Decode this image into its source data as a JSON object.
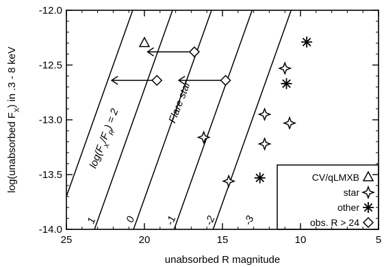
{
  "chart_data": {
    "type": "scatter",
    "xlabel": "unabsorbed R magnitude",
    "ylabel_main": "log(unabsorbed F",
    "ylabel_sub": "X",
    "ylabel_tail": ") in .3 - 8 keV",
    "xlim": [
      25,
      5
    ],
    "ylim": [
      -14.0,
      -12.0
    ],
    "x_ticks": [
      {
        "v": 25,
        "label": "25"
      },
      {
        "v": 20,
        "label": "20"
      },
      {
        "v": 15,
        "label": "15"
      },
      {
        "v": 10,
        "label": "10"
      },
      {
        "v": 5,
        "label": "5"
      }
    ],
    "y_ticks": [
      {
        "v": -12.0,
        "label": "-12.0"
      },
      {
        "v": -12.5,
        "label": "-12.5"
      },
      {
        "v": -13.0,
        "label": "-13.0"
      },
      {
        "v": -13.5,
        "label": "-13.5"
      },
      {
        "v": -14.0,
        "label": "-14.0"
      }
    ],
    "ratio_lines": [
      {
        "r_at_bottom": 25.75,
        "r_at_top": 20.75,
        "label": "1",
        "label_x": 23.2,
        "label_y": -13.93
      },
      {
        "r_at_bottom": 23.2,
        "r_at_top": 18.2,
        "label": "0",
        "label_x": 20.7,
        "label_y": -13.92
      },
      {
        "r_at_bottom": 20.7,
        "r_at_top": 15.7,
        "label": "-1",
        "label_x": 18.1,
        "label_y": -13.93
      },
      {
        "r_at_bottom": 18.1,
        "r_at_top": 13.1,
        "label": "-2",
        "label_x": 15.6,
        "label_y": -13.93
      },
      {
        "r_at_bottom": 15.6,
        "r_at_top": 10.6,
        "label": "-3",
        "label_x": 13.1,
        "label_y": -13.93
      }
    ],
    "diagonal_line_label": {
      "text_main": "log(F",
      "sub1": "X",
      "mid": "/F",
      "sub2": "R",
      "tail": ") = 2",
      "x": 22.4,
      "y": -13.18
    },
    "flare_label": {
      "text": "Flare star",
      "x": 17.55,
      "y": -12.85
    },
    "arrows": [
      {
        "from_x": 16.9,
        "to_x": 19.8,
        "y": -12.38
      },
      {
        "from_x": 14.8,
        "to_x": 17.8,
        "y": -12.64
      },
      {
        "from_x": 19.1,
        "to_x": 22.1,
        "y": -12.64
      }
    ],
    "series": [
      {
        "name": "CV/qLMXB",
        "marker": "triangle",
        "points": [
          [
            20.0,
            -12.3
          ]
        ]
      },
      {
        "name": "star",
        "marker": "star4",
        "points": [
          [
            16.2,
            -13.16
          ],
          [
            14.6,
            -13.56
          ],
          [
            12.3,
            -13.22
          ],
          [
            12.3,
            -12.95
          ],
          [
            11.0,
            -12.53
          ],
          [
            10.7,
            -13.03
          ]
        ]
      },
      {
        "name": "other",
        "marker": "asterisk",
        "points": [
          [
            9.6,
            -12.29
          ],
          [
            10.9,
            -12.67
          ],
          [
            12.6,
            -13.53
          ]
        ]
      },
      {
        "name": "obs. R > 24",
        "marker": "diamond",
        "points": [
          [
            16.8,
            -12.38
          ],
          [
            14.8,
            -12.64
          ],
          [
            19.2,
            -12.64
          ]
        ]
      }
    ],
    "legend": {
      "position": "bottom-right",
      "labels": [
        "CV/qLMXB",
        "star",
        "other",
        "obs. R > 24"
      ]
    }
  }
}
